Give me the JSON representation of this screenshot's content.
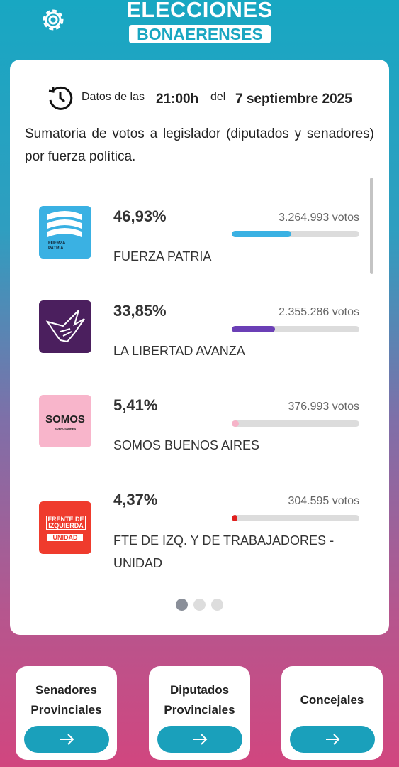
{
  "header": {
    "title_top": "ELECCIONES",
    "title_bottom": "BONAERENSES"
  },
  "timestamp": {
    "prefix": "Datos de las",
    "time": "21:00h",
    "connector": "del",
    "date": "7 septiembre 2025"
  },
  "description": "Sumatoria de votos a legislador (diputados y senadores) por fuerza política.",
  "parties": [
    {
      "name": "FUERZA PATRIA",
      "percent_label": "46,93%",
      "share": 46.93,
      "votes": "3.264.993 votos",
      "color": "#3ab1e3",
      "logo_lines": [
        "FUERZA",
        "PATRIA"
      ]
    },
    {
      "name": "LA LIBERTAD AVANZA",
      "percent_label": "33,85%",
      "share": 33.85,
      "votes": "2.355.286 votos",
      "color": "#6b3fb6"
    },
    {
      "name": "SOMOS BUENOS AIRES",
      "percent_label": "5,41%",
      "share": 5.41,
      "votes": "376.993 votos",
      "color": "#f6b3c8",
      "logo_lines": [
        "SOMOS",
        "BUENOS AIRES"
      ]
    },
    {
      "name": "FTE DE IZQ. Y DE TRABAJADORES - UNIDAD",
      "percent_label": "4,37%",
      "share": 4.37,
      "votes": "304.595 votos",
      "color": "#e0201e",
      "logo_lines": [
        "FRENTE DE",
        "IZQUIERDA",
        "UNIDAD"
      ]
    }
  ],
  "buttons": [
    {
      "lines": [
        "Senadores",
        "Provinciales"
      ]
    },
    {
      "lines": [
        "Diputados",
        "Provinciales"
      ]
    },
    {
      "lines": [
        "Concejales"
      ]
    }
  ]
}
